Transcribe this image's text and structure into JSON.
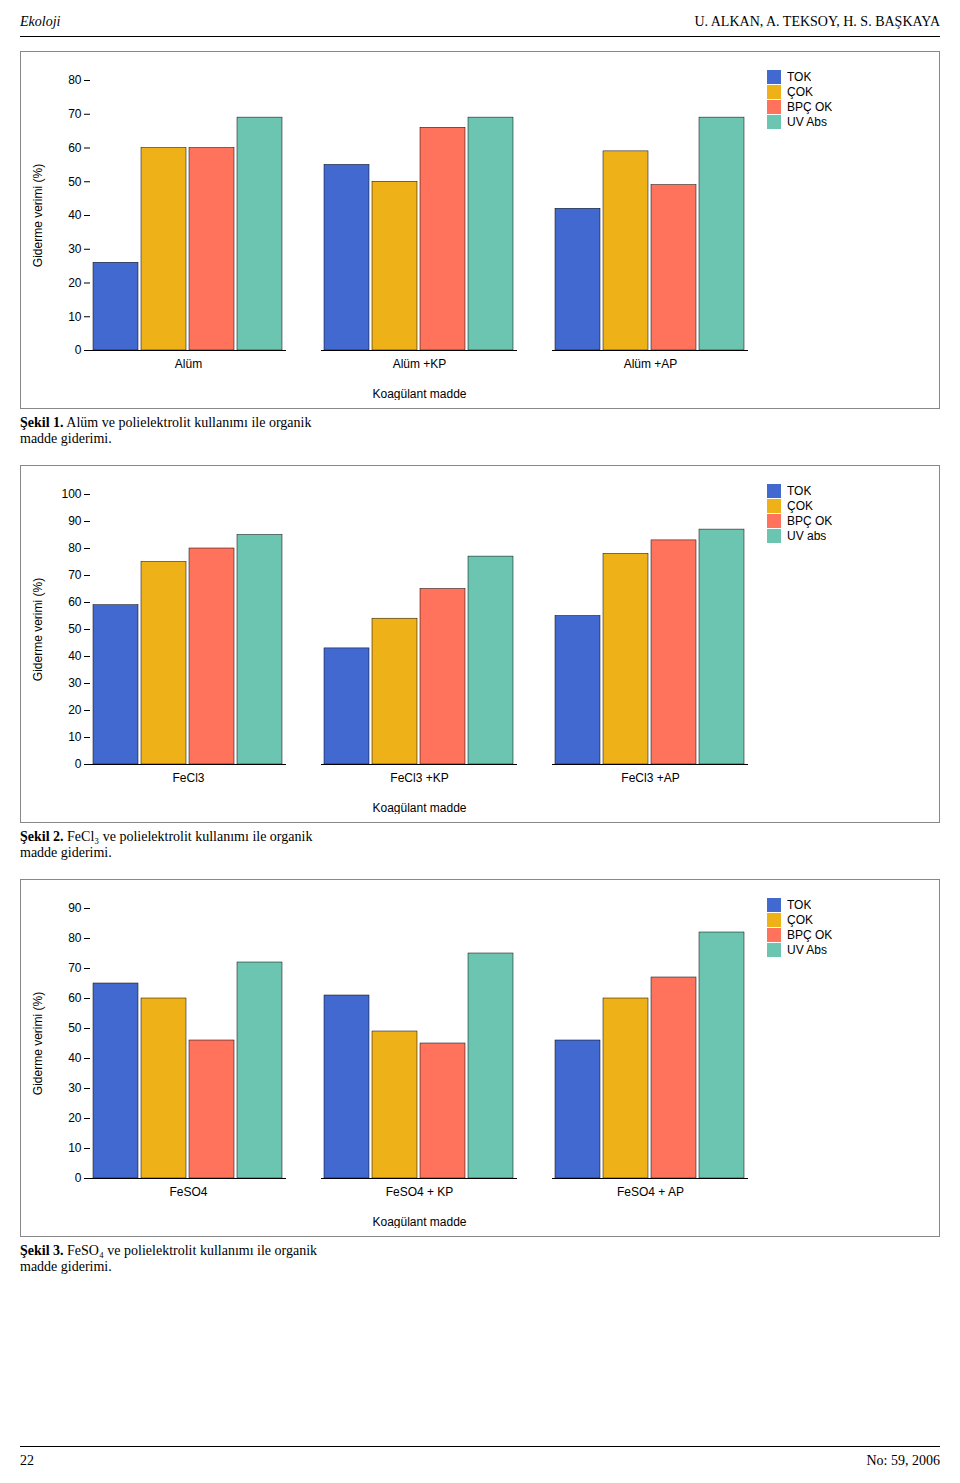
{
  "header": [
    "Ekoloji",
    "U. ALKAN, A. TEKSOY, H. S. BAŞKAYA"
  ],
  "footer": [
    "22",
    "No: 59, 2006"
  ],
  "chart_data": [
    {
      "type": "bar",
      "caption": "Şekil 1. Alüm ve polielektrolit kullanımı ile organik\nmadde giderimi.",
      "xlabel": "Koagülant madde",
      "ylabel": "Giderme verimi (%)",
      "categories": [
        "Alüm",
        "Alüm +KP",
        "Alüm +AP"
      ],
      "series": [
        {
          "name": "TOK",
          "values": [
            26,
            55,
            42
          ]
        },
        {
          "name": "ÇOK",
          "values": [
            60,
            50,
            59
          ]
        },
        {
          "name": "BPÇ OK",
          "values": [
            60,
            66,
            49
          ]
        },
        {
          "name": "UV Abs",
          "values": [
            69,
            69,
            69
          ]
        }
      ],
      "ylim": [
        0,
        80
      ],
      "yticks": [
        0,
        10,
        20,
        30,
        40,
        50,
        60,
        70,
        80
      ],
      "grid": false,
      "legend": "upper right"
    },
    {
      "type": "bar",
      "caption": "Şekil 2. FeCl₃ ve polielektrolit kullanımı ile organik\nmadde giderimi.",
      "xlabel": "Koagülant madde",
      "ylabel": "Giderme verimi (%)",
      "categories": [
        "FeCl3",
        "FeCl3 +KP",
        "FeCl3 +AP"
      ],
      "series": [
        {
          "name": "TOK",
          "values": [
            59,
            43,
            55
          ]
        },
        {
          "name": "ÇOK",
          "values": [
            75,
            54,
            78
          ]
        },
        {
          "name": "BPÇ OK",
          "values": [
            80,
            65,
            83
          ]
        },
        {
          "name": "UV abs",
          "values": [
            85,
            77,
            87
          ]
        }
      ],
      "ylim": [
        0,
        100
      ],
      "yticks": [
        0,
        10,
        20,
        30,
        40,
        50,
        60,
        70,
        80,
        90,
        100
      ],
      "grid": false,
      "legend": "upper right"
    },
    {
      "type": "bar",
      "caption": "Şekil 3. FeSO₄ ve polielektrolit kullanımı ile organik\nmadde giderimi.",
      "xlabel": "Koagülant madde",
      "ylabel": "Giderme verimi (%)",
      "categories": [
        "FeSO4",
        "FeSO4 + KP",
        "FeSO4 + AP"
      ],
      "series": [
        {
          "name": "TOK",
          "values": [
            65,
            61,
            46
          ]
        },
        {
          "name": "ÇOK",
          "values": [
            60,
            49,
            60
          ]
        },
        {
          "name": "BPÇ OK",
          "values": [
            46,
            45,
            67
          ]
        },
        {
          "name": "UV Abs",
          "values": [
            72,
            75,
            82
          ]
        }
      ],
      "ylim": [
        0,
        90
      ],
      "yticks": [
        0,
        10,
        20,
        30,
        40,
        50,
        60,
        70,
        80,
        90
      ],
      "grid": false,
      "legend": "upper right"
    }
  ]
}
